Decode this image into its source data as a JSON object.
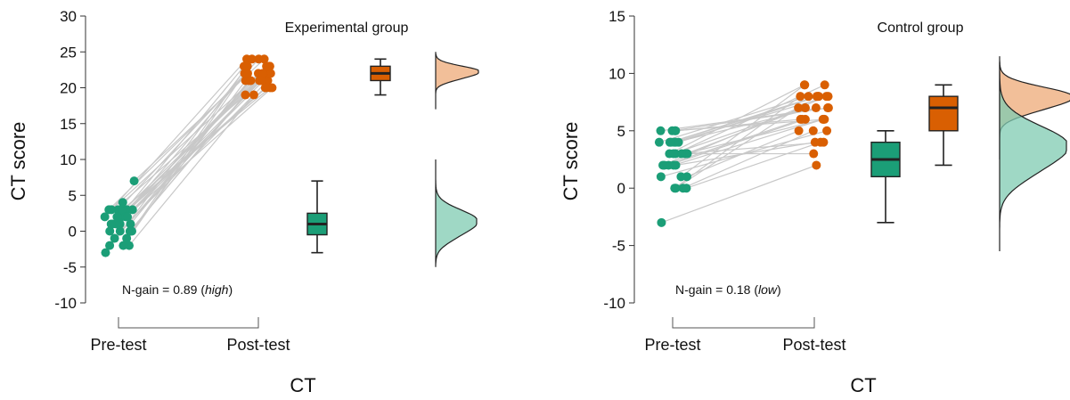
{
  "figure": {
    "accent_colors": {
      "pre": "#1b9e77",
      "post": "#d95f02",
      "pre_light": "#7fcbb2",
      "post_light": "#eeaa77",
      "lines": "#c8c8c8"
    }
  },
  "chart_data": [
    {
      "type": "raincloud",
      "title": "Experimental group",
      "ylabel": "CT score",
      "xlabel": "CT",
      "categories": [
        "Pre-test",
        "Post-test"
      ],
      "yticks": [
        -10,
        -5,
        0,
        5,
        10,
        15,
        20,
        25,
        30
      ],
      "ylim": [
        -10,
        30
      ],
      "note_prefix": "N-gain = 0.89 (",
      "note_emph": "high",
      "note_suffix": ")",
      "pre": [
        0,
        -1,
        2,
        3,
        1,
        -2,
        3,
        2,
        0,
        1,
        2,
        3,
        4,
        1,
        0,
        -1,
        2,
        3,
        7,
        2,
        1,
        0,
        -3,
        -2,
        3,
        1,
        2,
        3,
        0,
        -2
      ],
      "post": [
        22,
        21,
        23,
        24,
        20,
        19,
        22,
        23,
        21,
        22,
        24,
        20,
        19,
        22,
        23,
        21,
        22,
        23,
        24,
        20,
        21,
        22,
        23,
        22,
        21,
        20,
        23,
        22,
        24,
        21
      ],
      "box": {
        "pre": {
          "min": -3,
          "q1": -0.5,
          "median": 1,
          "q3": 2.5,
          "max": 7
        },
        "post": {
          "min": 19,
          "q1": 21,
          "median": 22,
          "q3": 23,
          "max": 24
        }
      },
      "density": {
        "post_range": [
          17,
          25
        ],
        "post_peak": 22.3,
        "pre_range": [
          -5,
          10
        ],
        "pre_peak": 1.5
      }
    },
    {
      "type": "raincloud",
      "title": "Control group",
      "ylabel": "CT score",
      "xlabel": "CT",
      "categories": [
        "Pre-test",
        "Post-test"
      ],
      "yticks": [
        -10,
        -5,
        0,
        5,
        10,
        15
      ],
      "ylim": [
        -10,
        15
      ],
      "note_prefix": "N-gain = 0.18 (",
      "note_emph": "low",
      "note_suffix": ")",
      "pre": [
        4,
        5,
        3,
        2,
        1,
        0,
        4,
        3,
        2,
        5,
        4,
        3,
        0,
        2,
        1,
        4,
        3,
        5,
        0,
        2,
        4,
        3,
        -3,
        1,
        4,
        3,
        0,
        2,
        5,
        3
      ],
      "post": [
        8,
        7,
        9,
        6,
        5,
        8,
        7,
        9,
        4,
        6,
        8,
        7,
        5,
        6,
        9,
        8,
        3,
        7,
        4,
        6,
        8,
        7,
        2,
        5,
        8,
        6,
        7,
        8,
        6,
        4
      ],
      "box": {
        "pre": {
          "min": -3,
          "q1": 1,
          "median": 2.5,
          "q3": 4,
          "max": 5
        },
        "post": {
          "min": 2,
          "q1": 5,
          "median": 7,
          "q3": 8,
          "max": 9
        }
      },
      "density": {
        "post_range": [
          2.5,
          11.5
        ],
        "post_peak": 8,
        "pre_range": [
          -5.5,
          11
        ],
        "pre_peak": 3.8
      }
    }
  ]
}
